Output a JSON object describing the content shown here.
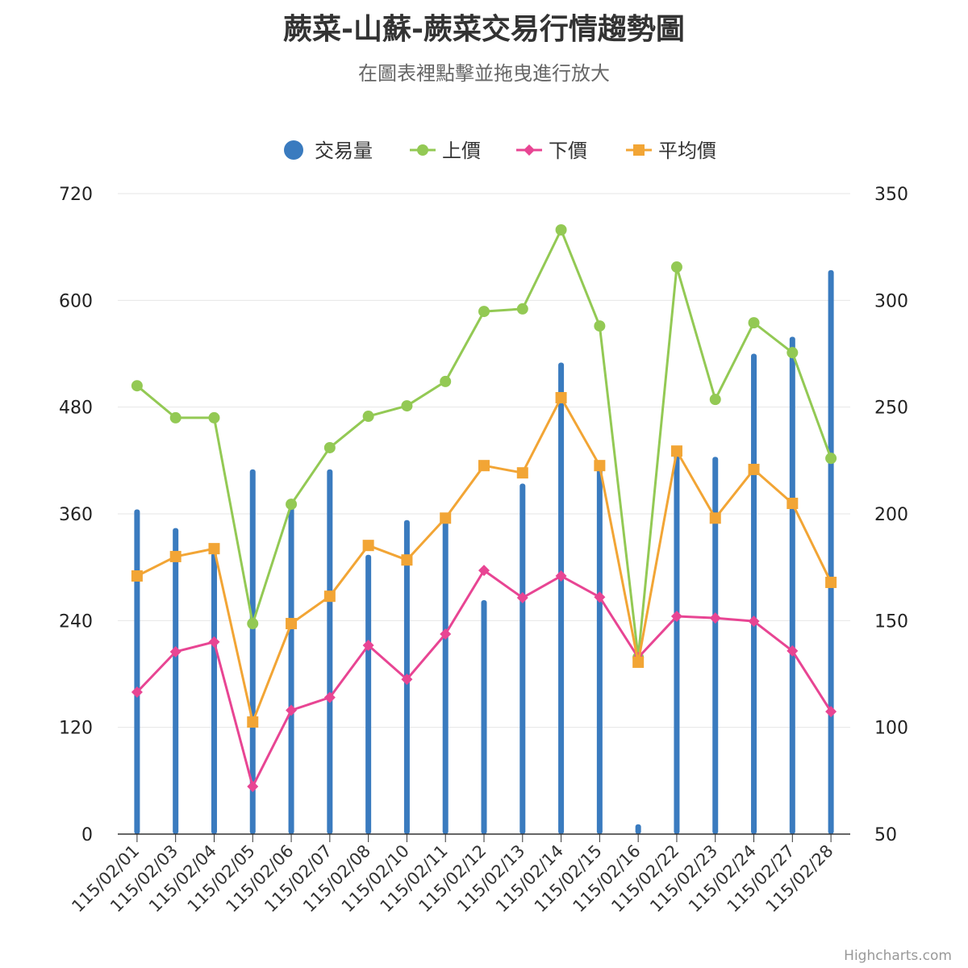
{
  "chart_data": {
    "type": "bar+line",
    "title": "蕨菜-山蘇-蕨菜交易行情趨勢圖",
    "subtitle": "在圖表裡點擊並拖曳進行放大",
    "credits": "Highcharts.com",
    "legend_position": "top",
    "grid": true,
    "categories": [
      "115/02/01",
      "115/02/03",
      "115/02/04",
      "115/02/05",
      "115/02/06",
      "115/02/07",
      "115/02/08",
      "115/02/10",
      "115/02/11",
      "115/02/12",
      "115/02/13",
      "115/02/14",
      "115/02/15",
      "115/02/16",
      "115/02/22",
      "115/02/23",
      "115/02/24",
      "115/02/27",
      "115/02/28"
    ],
    "y_left": {
      "min": 0,
      "max": 720,
      "ticks": [
        "0",
        "120",
        "240",
        "360",
        "480",
        "600",
        "720"
      ]
    },
    "y_right": {
      "min": 50,
      "max": 350,
      "ticks": [
        "50",
        "100",
        "150",
        "200",
        "250",
        "300",
        "350"
      ]
    },
    "series": [
      {
        "name": "交易量",
        "type": "column",
        "axis": "left",
        "color": "#3a7bbf",
        "values": [
          365,
          344,
          316,
          410,
          370,
          410,
          314,
          353,
          357,
          263,
          394,
          530,
          416,
          11,
          430,
          424,
          540,
          559,
          634
        ]
      },
      {
        "name": "上價",
        "type": "line",
        "axis": "right",
        "color": "#93c954",
        "marker": "circle",
        "values": [
          260,
          245,
          245,
          148.6,
          204.5,
          231,
          245.7,
          250.6,
          262,
          294.8,
          296,
          333,
          288,
          132.8,
          315.6,
          253.6,
          289.5,
          275.5,
          226
        ]
      },
      {
        "name": "下價",
        "type": "line",
        "axis": "right",
        "color": "#e84593",
        "marker": "diamond",
        "values": [
          116.5,
          135.4,
          140,
          72.3,
          108,
          114,
          138.4,
          122.5,
          143.7,
          173.5,
          160.7,
          170.9,
          161,
          132.7,
          152,
          151.2,
          149.7,
          135.8,
          107.4
        ]
      },
      {
        "name": "平均價",
        "type": "line",
        "axis": "right",
        "color": "#f2a535",
        "marker": "square",
        "values": [
          170.9,
          180,
          183.7,
          102.5,
          148.6,
          161.4,
          185.2,
          178.4,
          198,
          222.6,
          219.2,
          254.4,
          222.6,
          130.5,
          229.4,
          198,
          220.8,
          204.9,
          167.9
        ]
      }
    ]
  }
}
